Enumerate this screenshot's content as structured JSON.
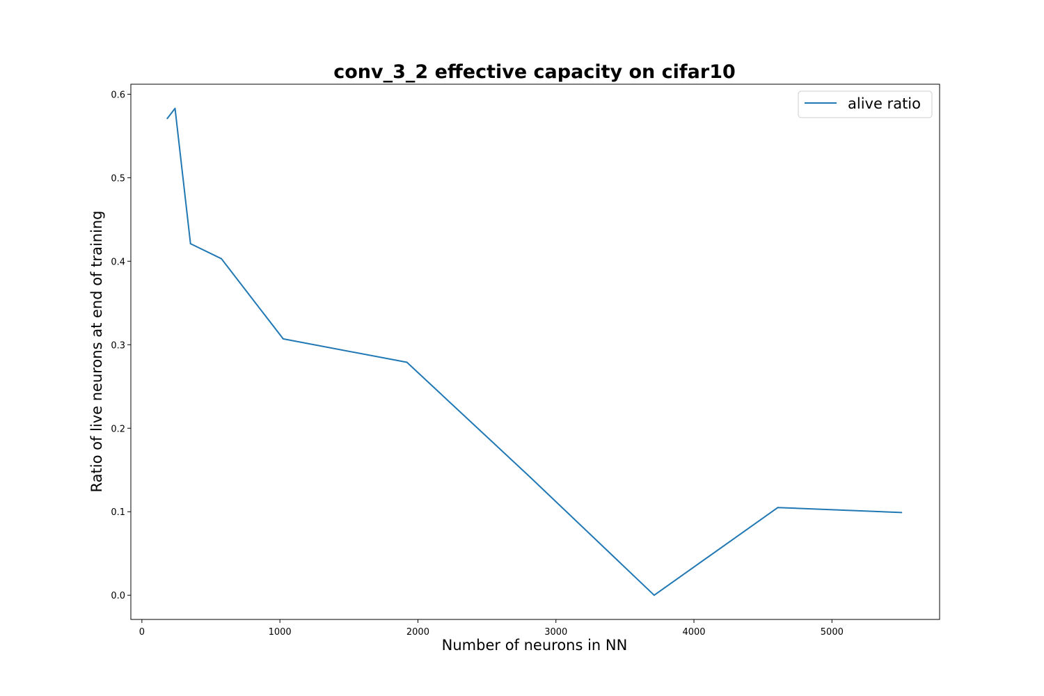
{
  "chart_data": {
    "type": "line",
    "title": "conv_3_2 effective capacity on cifar10",
    "xlabel": "Number of neurons in NN",
    "ylabel": "Ratio of live neurons at end of training",
    "xlim": [
      -80,
      5780
    ],
    "ylim": [
      -0.029,
      0.612
    ],
    "xticks": [
      0,
      1000,
      2000,
      3000,
      4000,
      5000
    ],
    "xtick_labels": [
      "0",
      "1000",
      "2000",
      "3000",
      "4000",
      "5000"
    ],
    "yticks": [
      0.0,
      0.1,
      0.2,
      0.3,
      0.4,
      0.5,
      0.6
    ],
    "ytick_labels": [
      "0.0",
      "0.1",
      "0.2",
      "0.3",
      "0.4",
      "0.5",
      "0.6"
    ],
    "grid": false,
    "legend_position": "top-right",
    "series": [
      {
        "name": "alive ratio",
        "color": "#1f77b4",
        "x": [
          184,
          240,
          352,
          576,
          1024,
          1920,
          2816,
          3712,
          4608,
          5504
        ],
        "y": [
          0.571,
          0.583,
          0.421,
          0.403,
          0.307,
          0.279,
          0.141,
          0.0,
          0.105,
          0.099
        ]
      }
    ]
  }
}
